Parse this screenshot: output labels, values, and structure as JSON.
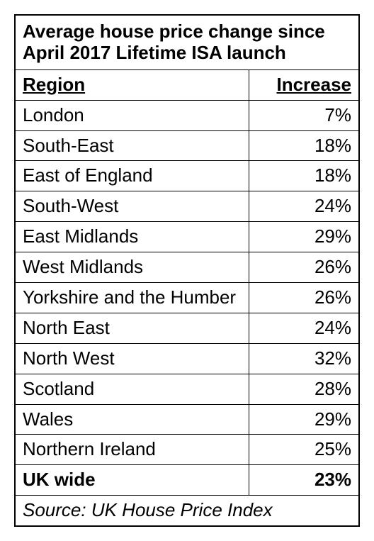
{
  "table": {
    "type": "table",
    "title": "Average house price change since April 2017 Lifetime ISA launch",
    "columns": [
      "Region",
      "Increase"
    ],
    "column_widths": [
      "68%",
      "32%"
    ],
    "column_align": [
      "left",
      "right"
    ],
    "rows": [
      {
        "region": "London",
        "increase": "7%",
        "bold": false
      },
      {
        "region": "South-East",
        "increase": "18%",
        "bold": false
      },
      {
        "region": "East of England",
        "increase": "18%",
        "bold": false
      },
      {
        "region": "South-West",
        "increase": "24%",
        "bold": false
      },
      {
        "region": "East Midlands",
        "increase": "29%",
        "bold": false
      },
      {
        "region": "West Midlands",
        "increase": "26%",
        "bold": false
      },
      {
        "region": "Yorkshire and the Humber",
        "increase": "26%",
        "bold": false
      },
      {
        "region": "North East",
        "increase": "24%",
        "bold": false
      },
      {
        "region": "North West",
        "increase": "32%",
        "bold": false
      },
      {
        "region": "Scotland",
        "increase": "28%",
        "bold": false
      },
      {
        "region": "Wales",
        "increase": "29%",
        "bold": false
      },
      {
        "region": "Northern Ireland",
        "increase": "25%",
        "bold": false
      },
      {
        "region": "UK wide",
        "increase": "23%",
        "bold": true
      }
    ],
    "source": "Source: UK House Price Index",
    "border_color": "#000000",
    "background_color": "#ffffff",
    "font_family": "Arial, Helvetica, sans-serif",
    "cell_fontsize": 26,
    "title_fontsize": 26
  }
}
